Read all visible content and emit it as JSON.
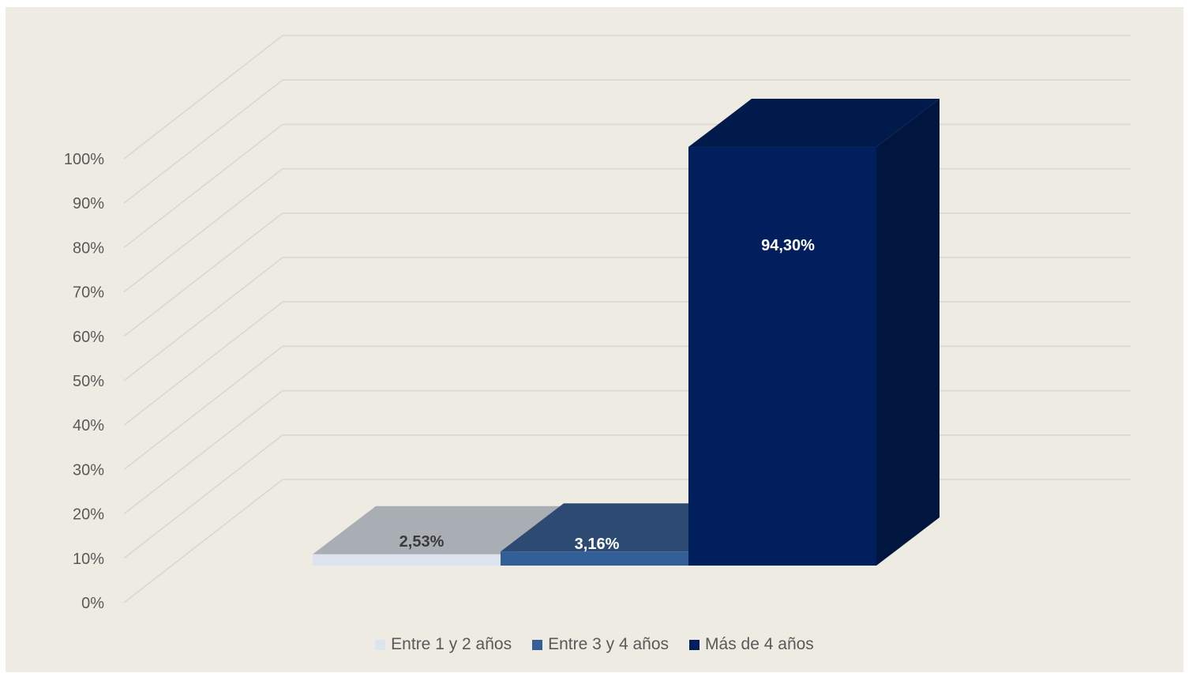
{
  "chart_data": {
    "type": "bar",
    "categories": [
      "Entre 1 y 2 años",
      "Entre 3 y 4 años",
      "Más de 4 años"
    ],
    "values": [
      2.53,
      3.16,
      94.3
    ],
    "data_labels": [
      "2,53%",
      "3,16%",
      "94,30%"
    ],
    "y_tick_labels": [
      "0%",
      "10%",
      "20%",
      "30%",
      "40%",
      "50%",
      "60%",
      "70%",
      "80%",
      "90%",
      "100%"
    ],
    "ylim": [
      0,
      100
    ],
    "grid": true,
    "legend_position": "bottom",
    "style": "3d",
    "colors": {
      "background": "#EEEBE2",
      "series": [
        "#DDE3EF",
        "#335F96",
        "#001F5C"
      ],
      "top_faces": [
        "#A9AEB5",
        "#2D4A72",
        "#001A4C"
      ],
      "side_faces": [
        "#C7CEDA",
        "#274C7A",
        "#00163F"
      ],
      "label_colors": [
        "#3A3A3A",
        "#FFFFFF",
        "#FFFFFF"
      ]
    }
  }
}
